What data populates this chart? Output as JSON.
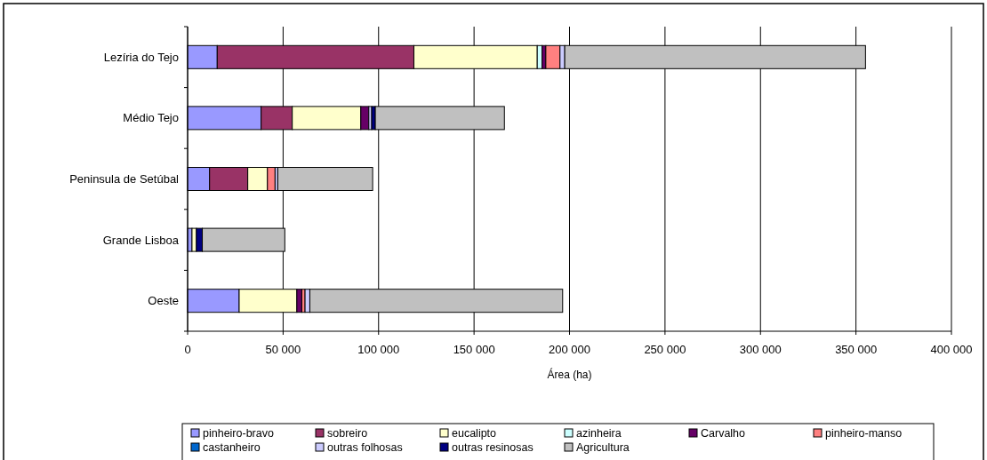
{
  "chart_data": {
    "type": "bar",
    "orientation": "horizontal",
    "stacked": true,
    "xlabel": "Área (ha)",
    "categories": [
      "Lezíria do Tejo",
      "Médio Tejo",
      "Peninsula de Setúbal",
      "Grande Lisboa",
      "Oeste"
    ],
    "series": [
      {
        "name": "pinheiro-bravo",
        "color": "#9999ff",
        "values": [
          15500,
          38500,
          11500,
          2300,
          27000
        ]
      },
      {
        "name": "sobreiro",
        "color": "#993366",
        "values": [
          103000,
          16300,
          20000,
          0,
          0
        ]
      },
      {
        "name": "eucalipto",
        "color": "#ffffcc",
        "values": [
          64600,
          35900,
          10300,
          2300,
          30200
        ]
      },
      {
        "name": "azinheira",
        "color": "#ccffff",
        "values": [
          2500,
          0,
          0,
          0,
          0
        ]
      },
      {
        "name": "Carvalho",
        "color": "#660066",
        "values": [
          2000,
          4200,
          0,
          0,
          2600
        ]
      },
      {
        "name": "pinheiro-manso",
        "color": "#ff8080",
        "values": [
          7400,
          0,
          4000,
          0,
          1700
        ]
      },
      {
        "name": "castanheiro",
        "color": "#0066cc",
        "values": [
          0,
          0,
          0,
          0,
          0
        ]
      },
      {
        "name": "outras folhosas",
        "color": "#ccccff",
        "values": [
          2500,
          1500,
          1400,
          0,
          2500
        ]
      },
      {
        "name": "outras resinosas",
        "color": "#000080",
        "values": [
          null,
          1900,
          0,
          3100,
          0
        ]
      },
      {
        "name": "Agricultura",
        "color": "#c0c0c0",
        "values": [
          157500,
          67600,
          49700,
          43200,
          132400
        ]
      }
    ],
    "xlim": [
      0,
      400000
    ],
    "xticks": [
      {
        "value": 0,
        "label": "0"
      },
      {
        "value": 50000,
        "label": "50 000"
      },
      {
        "value": 100000,
        "label": "100 000"
      },
      {
        "value": 150000,
        "label": "150 000"
      },
      {
        "value": 200000,
        "label": "200 000"
      },
      {
        "value": 250000,
        "label": "250 000"
      },
      {
        "value": 300000,
        "label": "300 000"
      },
      {
        "value": 350000,
        "label": "350 000"
      },
      {
        "value": 400000,
        "label": "400 000"
      }
    ],
    "grid": "x",
    "legend": "bottom"
  }
}
